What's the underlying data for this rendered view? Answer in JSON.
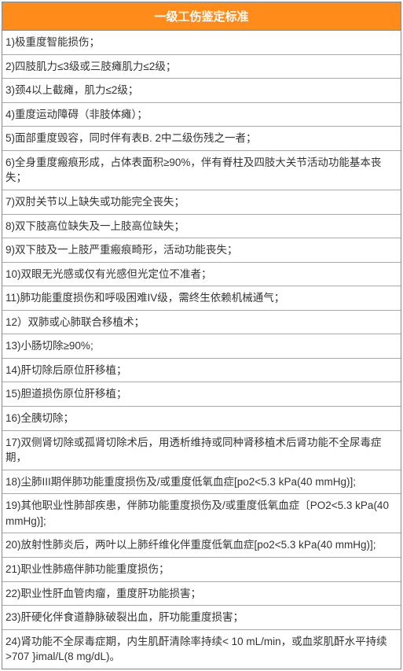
{
  "table": {
    "title": "一级工伤鉴定标准",
    "header_bg": "#ff8c1a",
    "header_text_color": "#ffffff",
    "border_color": "#888888",
    "row_bg": "#ffffff",
    "text_color": "#333333",
    "rows": [
      "1)极重度智能损伤；",
      "2)四肢肌力≤3级或三肢瘫肌力≤2级；",
      "3)颈4以上截瘫，肌力≤2级；",
      "4)重度运动障碍（非肢体瘫）；",
      "5)面部重度毁容，同时伴有表B. 2中二级伤残之一者；",
      "6)全身重度瘢痕形成，占体表面积≥90%，伴有脊柱及四肢大关节活动功能基本丧失；",
      "7)双肘关节以上缺失或功能完全丧失；",
      "8)双下肢高位缺失及一上肢高位缺失；",
      "9)双下肢及一上肢严重瘢痕畸形，活动功能丧失；",
      "10)双眼无光感或仅有光感但光定位不准者；",
      "11)肺功能重度损伤和呼吸困难IV级，需终生依赖机械通气；",
      "12）双肺或心肺联合移植术；",
      "13)小肠切除≥90%;",
      "14)肝切除后原位肝移植；",
      "15)胆道损伤原位肝移植；",
      "16)全胰切除；",
      "17)双侧肾切除或孤肾切除术后，用透析维持或同种肾移植术后肾功能不全尿毒症期，",
      "18)尘肺III期伴肺功能重度损伤及/或重度低氧血症[po2<5.3 kPa(40 mmHg)];",
      "19)其他职业性肺部疾患，伴肺功能重度损伤及/或重度低氧血症〔PO2<5.3 kPa(40 mmHg)];",
      "20)放射性肺炎后，两叶以上肺纤维化伴重度低氧血症[po2<5.3 kPa(40 mmHg)];",
      "21)职业性肺癌伴肺功能重度损伤；",
      "22)职业性肝血管肉瘤，重度肝功能损害；",
      "23)肝硬化伴食道静脉破裂出血，肝功能重度损害；",
      "24)肾功能不全尿毒症期，内生肌酐清除率持续< 10 mL/min，或血浆肌酐水平持续>707 }imal/L(8 mg/dL)。"
    ]
  }
}
